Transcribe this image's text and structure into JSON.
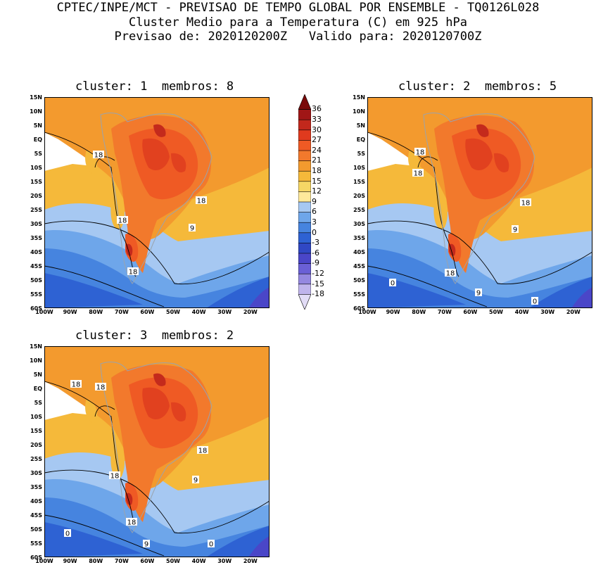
{
  "header": {
    "line1": "CPTEC/INPE/MCT - PREVISAO DE TEMPO GLOBAL POR ENSEMBLE - TQ0126L028",
    "line2": "Cluster Medio para a Temperatura (C) em 925 hPa",
    "line3": "Previsao de: 2020120200Z   Valido para: 2020120700Z"
  },
  "panels": [
    {
      "title": "cluster: 1  membros: 8",
      "contours": [
        {
          "label": "18"
        },
        {
          "label": "18"
        },
        {
          "label": "18"
        },
        {
          "label": "18"
        },
        {
          "label": "9"
        }
      ]
    },
    {
      "title": "cluster: 2  membros: 5",
      "contours": [
        {
          "label": "18"
        },
        {
          "label": "18"
        },
        {
          "label": "18"
        },
        {
          "label": "18"
        },
        {
          "label": "9"
        },
        {
          "label": "9"
        },
        {
          "label": "0"
        },
        {
          "label": "0"
        }
      ]
    },
    {
      "title": "cluster: 3  membros: 2",
      "contours": [
        {
          "label": "18"
        },
        {
          "label": "18"
        },
        {
          "label": "18"
        },
        {
          "label": "18"
        },
        {
          "label": "18"
        },
        {
          "label": "9"
        },
        {
          "label": "9"
        },
        {
          "label": "0"
        },
        {
          "label": "0"
        }
      ]
    }
  ],
  "axes": {
    "lat_ticks": [
      "15N",
      "10N",
      "5N",
      "EQ",
      "5S",
      "10S",
      "15S",
      "20S",
      "25S",
      "30S",
      "35S",
      "40S",
      "45S",
      "50S",
      "55S",
      "60S"
    ],
    "lon_ticks": [
      "100W",
      "90W",
      "80W",
      "70W",
      "60W",
      "50W",
      "40W",
      "30W",
      "20W"
    ]
  },
  "colorbar": {
    "labels": [
      "36",
      "33",
      "30",
      "27",
      "24",
      "21",
      "18",
      "15",
      "12",
      "9",
      "6",
      "3",
      "0",
      "-3",
      "-6",
      "-9",
      "-12",
      "-15",
      "-18"
    ],
    "colors": [
      "#7a0a0a",
      "#a01616",
      "#c2281c",
      "#e03a1e",
      "#ef5a24",
      "#f2792c",
      "#f39a2e",
      "#f5b93a",
      "#f6d765",
      "#ffe99b",
      "#a6c8f2",
      "#6ea6ea",
      "#4684df",
      "#2e62d3",
      "#3048c4",
      "#4a46c8",
      "#6a60d6",
      "#9488e0",
      "#bfb4ec",
      "#e2dcf6"
    ]
  }
}
